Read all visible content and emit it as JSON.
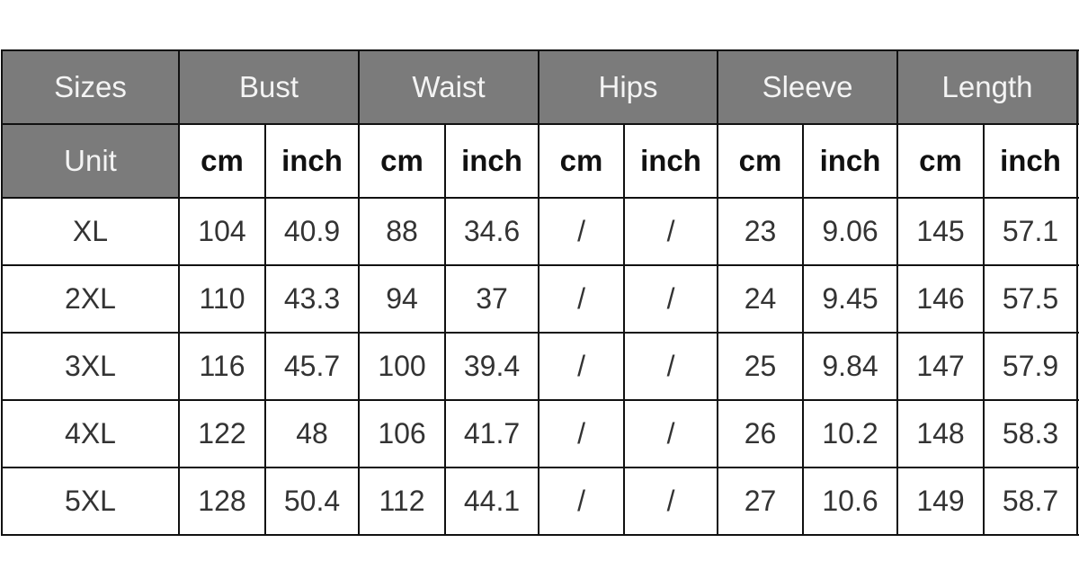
{
  "headers": [
    "Sizes",
    "Bust",
    "Waist",
    "Hips",
    "Sleeve",
    "Length"
  ],
  "unit_label": "Unit",
  "units": [
    "cm",
    "inch",
    "cm",
    "inch",
    "cm",
    "inch",
    "cm",
    "inch",
    "cm",
    "inch"
  ],
  "rows": [
    [
      "XL",
      "104",
      "40.9",
      "88",
      "34.6",
      "/",
      "/",
      "23",
      "9.06",
      "145",
      "57.1"
    ],
    [
      "2XL",
      "110",
      "43.3",
      "94",
      "37",
      "/",
      "/",
      "24",
      "9.45",
      "146",
      "57.5"
    ],
    [
      "3XL",
      "116",
      "45.7",
      "100",
      "39.4",
      "/",
      "/",
      "25",
      "9.84",
      "147",
      "57.9"
    ],
    [
      "4XL",
      "122",
      "48",
      "106",
      "41.7",
      "/",
      "/",
      "26",
      "10.2",
      "148",
      "58.3"
    ],
    [
      "5XL",
      "128",
      "50.4",
      "112",
      "44.1",
      "/",
      "/",
      "27",
      "10.6",
      "149",
      "58.7"
    ]
  ],
  "colors": {
    "header_bg": "#7b7b7b",
    "header_text": "#f4f4f4",
    "border": "#111111"
  }
}
